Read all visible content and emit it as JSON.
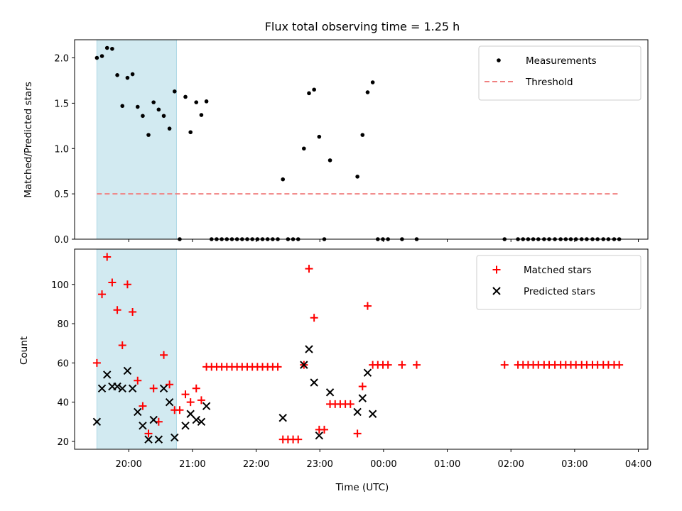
{
  "chart_data": [
    {
      "type": "scatter",
      "title": "Flux total observing time = 1.25 h",
      "xlabel": "",
      "ylabel": "Matched/Predicted stars",
      "xlim": [
        19.15,
        28.15
      ],
      "ylim": [
        0,
        2.2
      ],
      "yticks": [
        0.0,
        0.5,
        1.0,
        1.5,
        2.0
      ],
      "yticklabels": [
        "0.0",
        "0.5",
        "1.0",
        "1.5",
        "2.0"
      ],
      "legend_position": "top-right",
      "observing_window": [
        19.5,
        20.75
      ],
      "observing_window_color": "#add8e6",
      "series": [
        {
          "name": "Measurements",
          "color": "#000000",
          "marker": "dot",
          "points": [
            [
              19.5,
              2.0
            ],
            [
              19.58,
              2.02
            ],
            [
              19.66,
              2.11
            ],
            [
              19.74,
              2.1
            ],
            [
              19.82,
              1.81
            ],
            [
              19.9,
              1.47
            ],
            [
              19.98,
              1.78
            ],
            [
              20.06,
              1.82
            ],
            [
              20.14,
              1.46
            ],
            [
              20.22,
              1.36
            ],
            [
              20.31,
              1.15
            ],
            [
              20.39,
              1.51
            ],
            [
              20.47,
              1.43
            ],
            [
              20.55,
              1.36
            ],
            [
              20.64,
              1.22
            ],
            [
              20.72,
              1.63
            ],
            [
              20.8,
              0.0
            ],
            [
              20.89,
              1.57
            ],
            [
              20.97,
              1.18
            ],
            [
              21.06,
              1.51
            ],
            [
              21.14,
              1.37
            ],
            [
              21.22,
              1.52
            ],
            [
              21.3,
              0.0
            ],
            [
              21.38,
              0.0
            ],
            [
              21.46,
              0.0
            ],
            [
              21.54,
              0.0
            ],
            [
              21.62,
              0.0
            ],
            [
              21.7,
              0.0
            ],
            [
              21.78,
              0.0
            ],
            [
              21.86,
              0.0
            ],
            [
              21.94,
              0.0
            ],
            [
              22.02,
              0.0
            ],
            [
              22.1,
              0.0
            ],
            [
              22.18,
              0.0
            ],
            [
              22.26,
              0.0
            ],
            [
              22.34,
              0.0
            ],
            [
              22.42,
              0.66
            ],
            [
              22.5,
              0.0
            ],
            [
              22.58,
              0.0
            ],
            [
              22.66,
              0.0
            ],
            [
              22.75,
              1.0
            ],
            [
              22.83,
              1.61
            ],
            [
              22.91,
              1.65
            ],
            [
              22.99,
              1.13
            ],
            [
              23.07,
              0.0
            ],
            [
              23.16,
              0.87
            ],
            [
              23.59,
              0.69
            ],
            [
              23.67,
              1.15
            ],
            [
              23.75,
              1.62
            ],
            [
              23.83,
              1.73
            ],
            [
              23.91,
              0.0
            ],
            [
              23.99,
              0.0
            ],
            [
              24.07,
              0.0
            ],
            [
              24.29,
              0.0
            ],
            [
              24.52,
              0.0
            ],
            [
              25.9,
              0.0
            ],
            [
              26.11,
              0.0
            ],
            [
              26.19,
              0.0
            ],
            [
              26.27,
              0.0
            ],
            [
              26.35,
              0.0
            ],
            [
              26.43,
              0.0
            ],
            [
              26.52,
              0.0
            ],
            [
              26.6,
              0.0
            ],
            [
              26.69,
              0.0
            ],
            [
              26.78,
              0.0
            ],
            [
              26.86,
              0.0
            ],
            [
              26.94,
              0.0
            ],
            [
              27.02,
              0.0
            ],
            [
              27.11,
              0.0
            ],
            [
              27.19,
              0.0
            ],
            [
              27.28,
              0.0
            ],
            [
              27.36,
              0.0
            ],
            [
              27.45,
              0.0
            ],
            [
              27.53,
              0.0
            ],
            [
              27.62,
              0.0
            ],
            [
              27.7,
              0.0
            ]
          ]
        },
        {
          "name": "Threshold",
          "color": "#f08080",
          "style": "dashed",
          "points": [
            [
              19.5,
              0.5
            ],
            [
              27.7,
              0.5
            ]
          ]
        }
      ]
    },
    {
      "type": "scatter",
      "title": "",
      "xlabel": "Time (UTC)",
      "ylabel": "Count",
      "xlim": [
        19.15,
        28.15
      ],
      "ylim": [
        16,
        118
      ],
      "yticks": [
        20,
        40,
        60,
        80,
        100
      ],
      "yticklabels": [
        "20",
        "40",
        "60",
        "80",
        "100"
      ],
      "xticks": [
        20,
        21,
        22,
        23,
        24,
        25,
        26,
        27,
        28
      ],
      "xticklabels": [
        "20:00",
        "21:00",
        "22:00",
        "23:00",
        "00:00",
        "01:00",
        "02:00",
        "03:00",
        "04:00"
      ],
      "legend_position": "top-right",
      "observing_window": [
        19.5,
        20.75
      ],
      "observing_window_color": "#add8e6",
      "series": [
        {
          "name": "Matched stars",
          "color": "#ff0000",
          "marker": "plus",
          "points": [
            [
              19.5,
              60
            ],
            [
              19.58,
              95
            ],
            [
              19.66,
              114
            ],
            [
              19.74,
              101
            ],
            [
              19.82,
              87
            ],
            [
              19.9,
              69
            ],
            [
              19.98,
              100
            ],
            [
              20.06,
              86
            ],
            [
              20.14,
              51
            ],
            [
              20.22,
              38
            ],
            [
              20.31,
              24
            ],
            [
              20.39,
              47
            ],
            [
              20.47,
              30
            ],
            [
              20.55,
              64
            ],
            [
              20.64,
              49
            ],
            [
              20.72,
              36
            ],
            [
              20.8,
              36
            ],
            [
              20.89,
              44
            ],
            [
              20.97,
              40
            ],
            [
              21.06,
              47
            ],
            [
              21.14,
              41
            ],
            [
              21.22,
              58
            ],
            [
              21.3,
              58
            ],
            [
              21.38,
              58
            ],
            [
              21.46,
              58
            ],
            [
              21.54,
              58
            ],
            [
              21.62,
              58
            ],
            [
              21.7,
              58
            ],
            [
              21.78,
              58
            ],
            [
              21.86,
              58
            ],
            [
              21.94,
              58
            ],
            [
              22.02,
              58
            ],
            [
              22.1,
              58
            ],
            [
              22.18,
              58
            ],
            [
              22.26,
              58
            ],
            [
              22.34,
              58
            ],
            [
              22.42,
              21
            ],
            [
              22.5,
              21
            ],
            [
              22.58,
              21
            ],
            [
              22.66,
              21
            ],
            [
              22.75,
              59
            ],
            [
              22.83,
              108
            ],
            [
              22.91,
              83
            ],
            [
              22.99,
              26
            ],
            [
              23.07,
              26
            ],
            [
              23.16,
              39
            ],
            [
              23.24,
              39
            ],
            [
              23.32,
              39
            ],
            [
              23.4,
              39
            ],
            [
              23.48,
              39
            ],
            [
              23.59,
              24
            ],
            [
              23.67,
              48
            ],
            [
              23.75,
              89
            ],
            [
              23.83,
              59
            ],
            [
              23.91,
              59
            ],
            [
              23.99,
              59
            ],
            [
              24.07,
              59
            ],
            [
              24.29,
              59
            ],
            [
              24.52,
              59
            ],
            [
              25.9,
              59
            ],
            [
              26.11,
              59
            ],
            [
              26.19,
              59
            ],
            [
              26.27,
              59
            ],
            [
              26.35,
              59
            ],
            [
              26.43,
              59
            ],
            [
              26.52,
              59
            ],
            [
              26.6,
              59
            ],
            [
              26.69,
              59
            ],
            [
              26.78,
              59
            ],
            [
              26.86,
              59
            ],
            [
              26.94,
              59
            ],
            [
              27.02,
              59
            ],
            [
              27.11,
              59
            ],
            [
              27.19,
              59
            ],
            [
              27.28,
              59
            ],
            [
              27.36,
              59
            ],
            [
              27.45,
              59
            ],
            [
              27.53,
              59
            ],
            [
              27.62,
              59
            ],
            [
              27.7,
              59
            ]
          ]
        },
        {
          "name": "Predicted stars",
          "color": "#000000",
          "marker": "x",
          "points": [
            [
              19.5,
              30
            ],
            [
              19.58,
              47
            ],
            [
              19.66,
              54
            ],
            [
              19.74,
              48
            ],
            [
              19.82,
              48
            ],
            [
              19.9,
              47
            ],
            [
              19.98,
              56
            ],
            [
              20.06,
              47
            ],
            [
              20.14,
              35
            ],
            [
              20.22,
              28
            ],
            [
              20.31,
              21
            ],
            [
              20.39,
              31
            ],
            [
              20.47,
              21
            ],
            [
              20.55,
              47
            ],
            [
              20.64,
              40
            ],
            [
              20.72,
              22
            ],
            [
              20.89,
              28
            ],
            [
              20.97,
              34
            ],
            [
              21.06,
              31
            ],
            [
              21.14,
              30
            ],
            [
              21.22,
              38
            ],
            [
              22.42,
              32
            ],
            [
              22.75,
              59
            ],
            [
              22.83,
              67
            ],
            [
              22.91,
              50
            ],
            [
              22.99,
              23
            ],
            [
              23.16,
              45
            ],
            [
              23.59,
              35
            ],
            [
              23.67,
              42
            ],
            [
              23.75,
              55
            ],
            [
              23.83,
              34
            ]
          ]
        }
      ]
    }
  ]
}
